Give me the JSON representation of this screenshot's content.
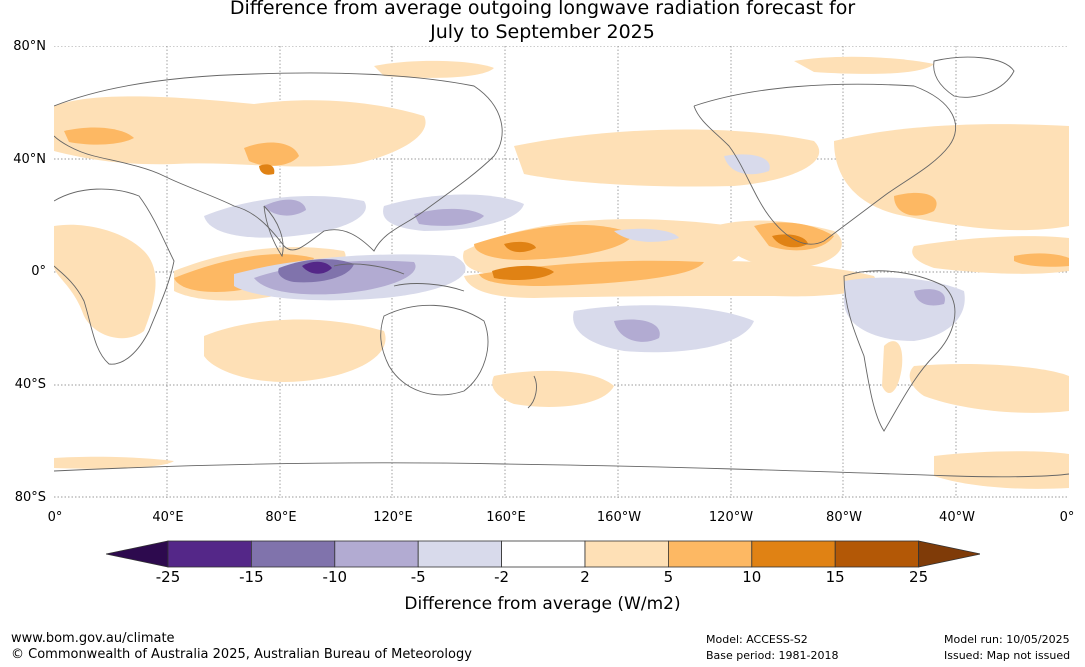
{
  "title": {
    "line1": "Difference from average outgoing longwave radiation forecast for",
    "line2": "July to September 2025"
  },
  "map": {
    "lat_labels": [
      "80°N",
      "40°N",
      "0°",
      "40°S",
      "80°S"
    ],
    "lon_labels": [
      "0°",
      "40°E",
      "80°E",
      "120°E",
      "160°E",
      "160°W",
      "120°W",
      "80°W",
      "40°W",
      "0°"
    ],
    "projection": "equirectangular",
    "lon_range": [
      0,
      360
    ],
    "lat_range": [
      -80,
      80
    ],
    "grid": true
  },
  "colorbar": {
    "ticks": [
      "-25",
      "-15",
      "-10",
      "-5",
      "-2",
      "2",
      "5",
      "10",
      "15",
      "25"
    ],
    "colors": [
      "#2d0a4e",
      "#542788",
      "#8073ac",
      "#b2abd2",
      "#d8daeb",
      "#ffffff",
      "#fee0b6",
      "#fdb863",
      "#e08214",
      "#b35806",
      "#7f3b08"
    ],
    "label": "Difference from average (W/m2)"
  },
  "footer": {
    "website": "www.bom.gov.au/climate",
    "copyright": "© Commonwealth of Australia 2025, Australian Bureau of Meteorology",
    "model": "Model: ACCESS-S2",
    "base_period": "Base period: 1981-2018",
    "model_run": "Model run: 10/05/2025",
    "issued": "Issued: Map not issued"
  }
}
